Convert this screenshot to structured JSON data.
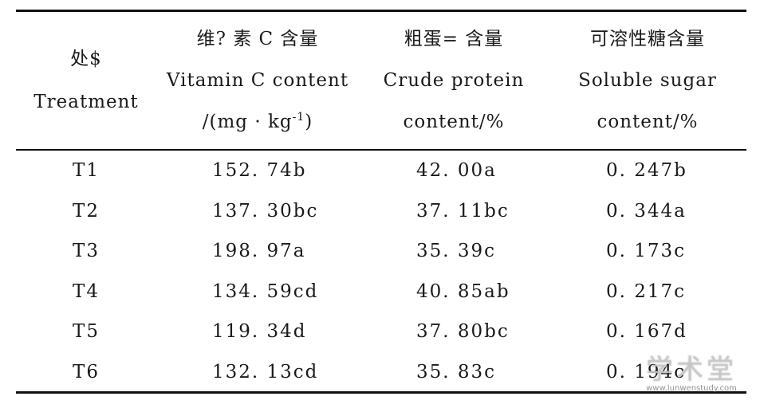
{
  "table": {
    "header": {
      "treatment": [
        "处$",
        "Treatment"
      ],
      "vitamin_c": [
        "维? 素 C 含量",
        "Vitamin C content",
        "/(mg · kg",
        "-1",
        ")"
      ],
      "crude_protein": [
        "粗蛋= 含量",
        "Crude protein",
        "content/%"
      ],
      "soluble_sugar": [
        "可溶性糖含量",
        "Soluble sugar",
        "content/%"
      ]
    },
    "rows": [
      {
        "treatment": "T1",
        "vitamin_c": "152. 74b",
        "crude_protein": "42. 00a",
        "soluble_sugar": "0. 247b"
      },
      {
        "treatment": "T2",
        "vitamin_c": "137. 30bc",
        "crude_protein": "37. 11bc",
        "soluble_sugar": "0. 344a"
      },
      {
        "treatment": "T3",
        "vitamin_c": "198. 97a",
        "crude_protein": "35. 39c",
        "soluble_sugar": "0. 173c"
      },
      {
        "treatment": "T4",
        "vitamin_c": "134. 59cd",
        "crude_protein": "40. 85ab",
        "soluble_sugar": "0. 217c"
      },
      {
        "treatment": "T5",
        "vitamin_c": "119. 34d",
        "crude_protein": "37. 80bc",
        "soluble_sugar": "0. 167d"
      },
      {
        "treatment": "T6",
        "vitamin_c": "132. 13cd",
        "crude_protein": "35. 83c",
        "soluble_sugar": "0. 194c"
      }
    ]
  },
  "watermark": {
    "main": "学术堂",
    "sub": "www.lunwenstudy.com"
  }
}
